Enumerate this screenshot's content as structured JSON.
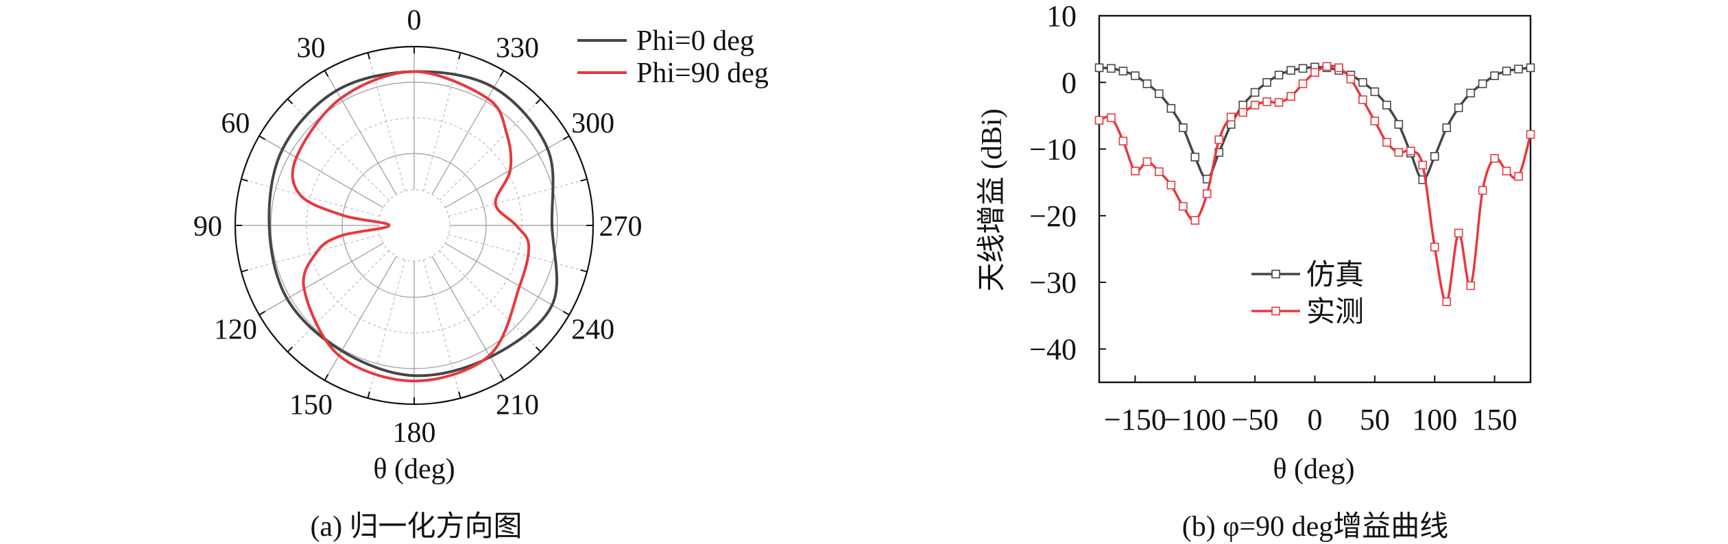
{
  "chart_data": [
    {
      "type": "polar-line",
      "caption": "(a) 归一化方向图",
      "xlabel": "θ (deg)",
      "angle_tick_labels": [
        "0",
        "30",
        "60",
        "90",
        "120",
        "150",
        "180",
        "210",
        "240",
        "270",
        "300",
        "330"
      ],
      "radial_units": "fraction of outer ring (no radial labels shown)",
      "grid": true,
      "legend_position": "top-right",
      "series": [
        {
          "name": "Phi=0 deg",
          "color": "#454545",
          "angles": [
            0,
            30,
            60,
            90,
            120,
            150,
            180,
            210,
            240,
            270,
            300,
            330
          ],
          "r": [
            0.86,
            0.87,
            0.85,
            0.81,
            0.82,
            0.81,
            0.84,
            0.85,
            0.89,
            0.77,
            0.86,
            0.89
          ]
        },
        {
          "name": "Phi=90 deg",
          "color": "#e8383d",
          "angles": [
            0,
            30,
            60,
            75,
            82,
            90,
            98,
            105,
            120,
            150,
            180,
            210,
            240,
            260,
            270,
            285,
            300,
            315,
            330
          ],
          "r": [
            0.86,
            0.82,
            0.76,
            0.66,
            0.4,
            0.14,
            0.41,
            0.56,
            0.71,
            0.84,
            0.87,
            0.84,
            0.68,
            0.65,
            0.57,
            0.47,
            0.62,
            0.73,
            0.82
          ]
        }
      ]
    },
    {
      "type": "line",
      "caption": "(b) φ=90 deg增益曲线",
      "xlabel": "θ (deg)",
      "ylabel": "天线增益 (dBi)",
      "xlim": [
        -180,
        180
      ],
      "ylim": [
        -45,
        10
      ],
      "xticks": [
        -150,
        -100,
        -50,
        0,
        50,
        100,
        150
      ],
      "yticks": [
        10,
        0,
        -10,
        -20,
        -30,
        -40
      ],
      "xtick_labels": [
        "−150",
        "−100",
        "−50",
        "0",
        "50",
        "100",
        "150"
      ],
      "ytick_labels": [
        "10",
        "0",
        "−10",
        "−20",
        "−30",
        "−40"
      ],
      "legend_position": "center",
      "x": [
        -180,
        -170,
        -160,
        -150,
        -140,
        -130,
        -120,
        -110,
        -100,
        -90,
        -80,
        -70,
        -60,
        -50,
        -40,
        -30,
        -20,
        -10,
        0,
        10,
        20,
        30,
        40,
        50,
        60,
        70,
        80,
        90,
        100,
        110,
        120,
        130,
        140,
        150,
        160,
        170,
        180
      ],
      "series": [
        {
          "name": "仿真",
          "color": "#454545",
          "values": [
            2.2,
            2.1,
            1.7,
            1.0,
            -0.2,
            -1.7,
            -3.9,
            -6.8,
            -11.2,
            -14.5,
            -10.5,
            -6.3,
            -3.4,
            -1.5,
            0,
            1.1,
            1.8,
            2.1,
            2.3,
            2.2,
            1.8,
            1.1,
            0,
            -1.4,
            -3.4,
            -6.3,
            -10.6,
            -14.6,
            -11.1,
            -6.8,
            -3.8,
            -1.6,
            -0.2,
            1.0,
            1.7,
            2.0,
            2.2
          ]
        },
        {
          "name": "实测",
          "color": "#e8383d",
          "values": [
            -5.7,
            -5.3,
            -8.8,
            -13.3,
            -11.9,
            -13.4,
            -15.4,
            -18.6,
            -20.7,
            -16.7,
            -8.6,
            -5.2,
            -4.5,
            -3.4,
            -2.9,
            -3.0,
            -2.1,
            -0.2,
            1.5,
            2.4,
            2.2,
            0.5,
            -2.6,
            -5.8,
            -9.0,
            -10.5,
            -10.3,
            -12.4,
            -24.7,
            -32.9,
            -22.6,
            -30.5,
            -16.2,
            -11.4,
            -13.3,
            -14.1,
            -7.8
          ]
        }
      ]
    }
  ]
}
